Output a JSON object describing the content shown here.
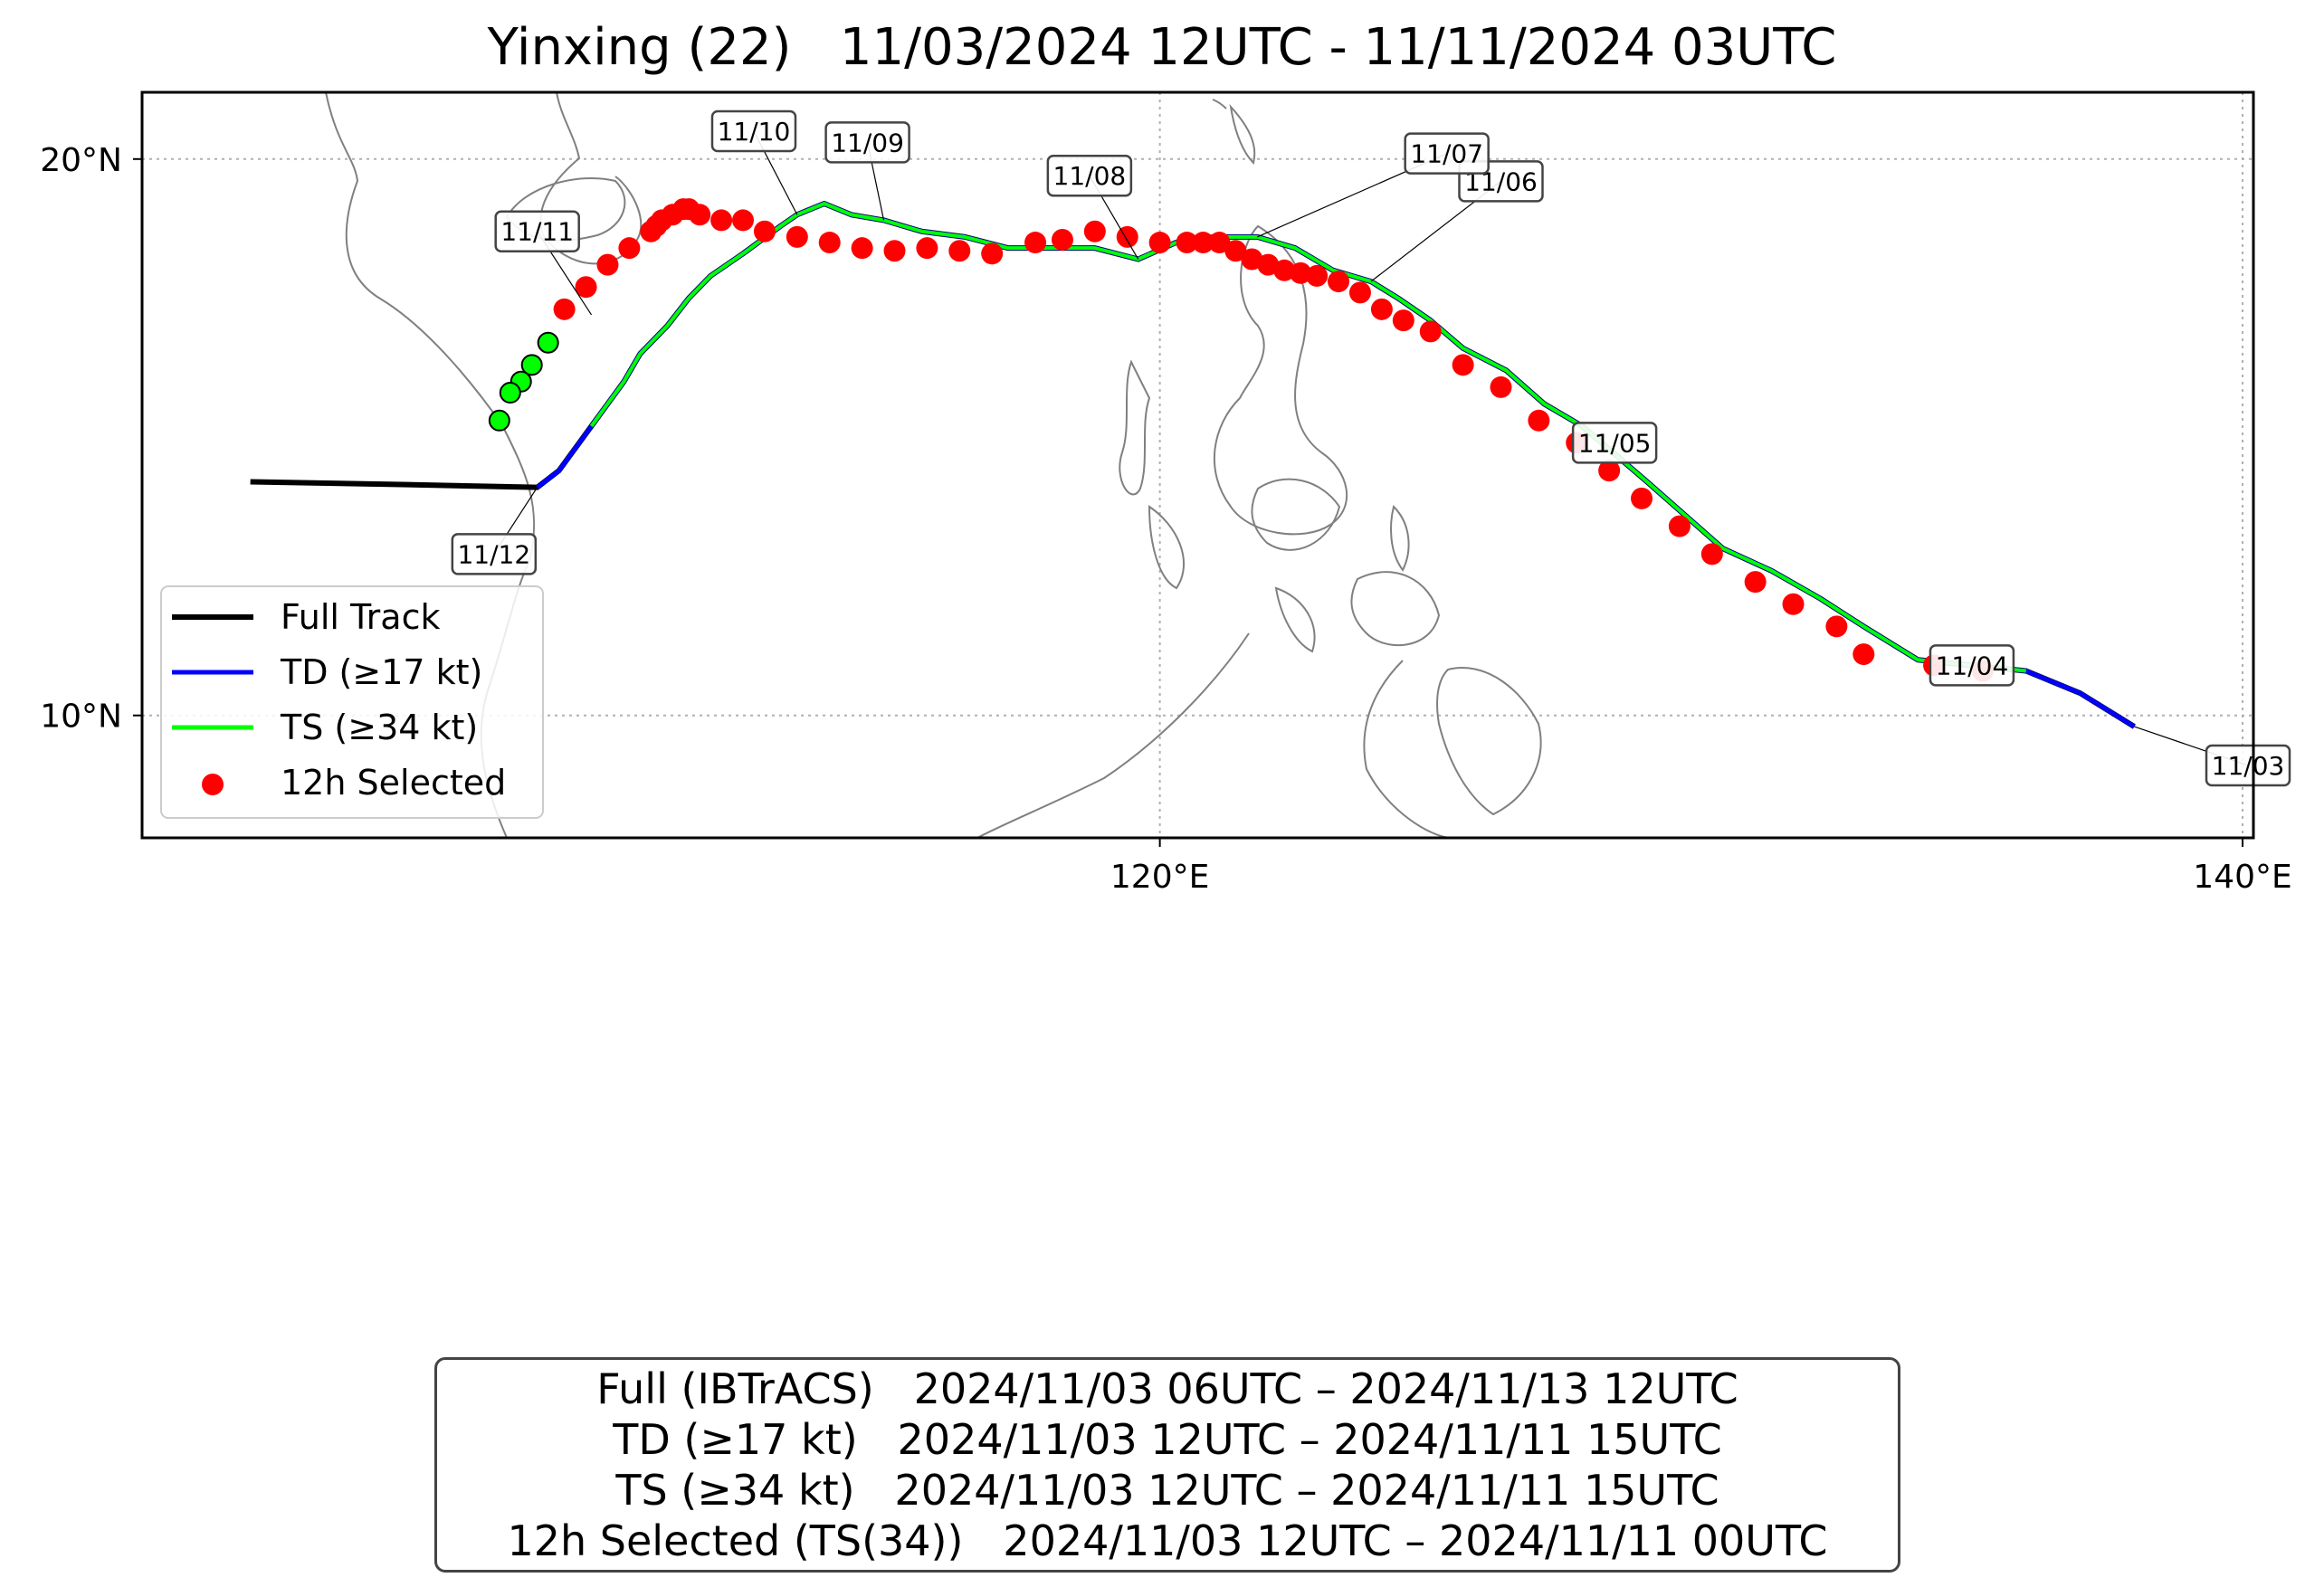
{
  "title": "Yinxing (22)   11/03/2024 12UTC - 11/11/2024 03UTC",
  "colors": {
    "full": "#000000",
    "td": "#0000ff",
    "ts": "#00ff00",
    "selected": "#ff0000",
    "coast": "#808080",
    "grid": "#b0b0b0"
  },
  "chart_data": {
    "type": "map",
    "lon_range": [
      101.2,
      140.2
    ],
    "lat_range": [
      7.8,
      21.2
    ],
    "x_ticks": [
      {
        "value": 120,
        "label": "120°E"
      },
      {
        "value": 140,
        "label": "140°E"
      }
    ],
    "y_ticks": [
      {
        "value": 10,
        "label": "10°N"
      },
      {
        "value": 20,
        "label": "20°N"
      }
    ],
    "grid": true,
    "legend_position": "lower-left",
    "legend": [
      {
        "key": "full",
        "label": "Full Track"
      },
      {
        "key": "td",
        "label": "TD (≥17 kt)"
      },
      {
        "key": "ts",
        "label": "TS (≥34 kt)"
      },
      {
        "key": "selected",
        "label": "12h Selected"
      }
    ],
    "full_track": [
      [
        138.0,
        9.8
      ],
      [
        137.0,
        10.4
      ],
      [
        136.0,
        10.8
      ],
      [
        135.0,
        10.9
      ],
      [
        134.0,
        11.0
      ],
      [
        133.0,
        11.6
      ],
      [
        132.2,
        12.1
      ],
      [
        131.3,
        12.6
      ],
      [
        130.4,
        13.0
      ],
      [
        129.7,
        13.6
      ],
      [
        129.0,
        14.2
      ],
      [
        128.4,
        14.7
      ],
      [
        127.8,
        15.2
      ],
      [
        127.1,
        15.6
      ],
      [
        126.4,
        16.2
      ],
      [
        125.6,
        16.6
      ],
      [
        125.0,
        17.1
      ],
      [
        124.4,
        17.5
      ],
      [
        123.9,
        17.8
      ],
      [
        123.2,
        18.0
      ],
      [
        122.5,
        18.4
      ],
      [
        121.8,
        18.6
      ],
      [
        121.0,
        18.6
      ],
      [
        120.3,
        18.5
      ],
      [
        119.6,
        18.2
      ],
      [
        118.8,
        18.4
      ],
      [
        118.0,
        18.4
      ],
      [
        117.2,
        18.4
      ],
      [
        116.4,
        18.6
      ],
      [
        115.6,
        18.7
      ],
      [
        114.9,
        18.9
      ],
      [
        114.3,
        19.0
      ],
      [
        113.8,
        19.2
      ],
      [
        113.3,
        19.0
      ],
      [
        113.0,
        18.8
      ],
      [
        112.3,
        18.3
      ],
      [
        111.7,
        17.9
      ],
      [
        111.3,
        17.5
      ],
      [
        110.9,
        17.0
      ],
      [
        110.4,
        16.5
      ],
      [
        110.1,
        16.0
      ],
      [
        109.8,
        15.6
      ],
      [
        109.5,
        15.2
      ],
      [
        109.2,
        14.8
      ],
      [
        108.9,
        14.4
      ],
      [
        108.5,
        14.1
      ],
      [
        106.0,
        14.15
      ],
      [
        103.2,
        14.2
      ]
    ],
    "td_track": [
      [
        138.0,
        9.8
      ],
      [
        137.0,
        10.4
      ],
      [
        136.0,
        10.8
      ],
      [
        135.0,
        10.9
      ],
      [
        134.0,
        11.0
      ],
      [
        133.0,
        11.6
      ],
      [
        132.2,
        12.1
      ],
      [
        131.3,
        12.6
      ],
      [
        130.4,
        13.0
      ],
      [
        129.7,
        13.6
      ],
      [
        129.0,
        14.2
      ],
      [
        128.4,
        14.7
      ],
      [
        127.8,
        15.2
      ],
      [
        127.1,
        15.6
      ],
      [
        126.4,
        16.2
      ],
      [
        125.6,
        16.6
      ],
      [
        125.0,
        17.1
      ],
      [
        124.4,
        17.5
      ],
      [
        123.9,
        17.8
      ],
      [
        123.2,
        18.0
      ],
      [
        122.5,
        18.4
      ],
      [
        121.8,
        18.6
      ],
      [
        121.0,
        18.6
      ],
      [
        120.3,
        18.5
      ],
      [
        119.6,
        18.2
      ],
      [
        118.8,
        18.4
      ],
      [
        118.0,
        18.4
      ],
      [
        117.2,
        18.4
      ],
      [
        116.4,
        18.6
      ],
      [
        115.6,
        18.7
      ],
      [
        114.9,
        18.9
      ],
      [
        114.3,
        19.0
      ],
      [
        113.8,
        19.2
      ],
      [
        113.3,
        19.0
      ],
      [
        113.0,
        18.8
      ],
      [
        112.3,
        18.3
      ],
      [
        111.7,
        17.9
      ],
      [
        111.3,
        17.5
      ],
      [
        110.9,
        17.0
      ],
      [
        110.4,
        16.5
      ],
      [
        110.1,
        16.0
      ],
      [
        109.8,
        15.6
      ],
      [
        109.5,
        15.2
      ],
      [
        109.2,
        14.8
      ],
      [
        108.9,
        14.4
      ],
      [
        108.5,
        14.1
      ]
    ],
    "ts_track": [
      [
        136.0,
        10.8
      ],
      [
        135.0,
        10.9
      ],
      [
        134.0,
        11.0
      ],
      [
        133.0,
        11.6
      ],
      [
        132.2,
        12.1
      ],
      [
        131.3,
        12.6
      ],
      [
        130.4,
        13.0
      ],
      [
        129.7,
        13.6
      ],
      [
        129.0,
        14.2
      ],
      [
        128.4,
        14.7
      ],
      [
        127.8,
        15.2
      ],
      [
        127.1,
        15.6
      ],
      [
        126.4,
        16.2
      ],
      [
        125.6,
        16.6
      ],
      [
        125.0,
        17.1
      ],
      [
        124.4,
        17.5
      ],
      [
        123.9,
        17.8
      ],
      [
        123.2,
        18.0
      ],
      [
        122.5,
        18.4
      ],
      [
        121.8,
        18.6
      ],
      [
        121.0,
        18.6
      ],
      [
        120.3,
        18.5
      ],
      [
        119.6,
        18.2
      ],
      [
        118.8,
        18.4
      ],
      [
        118.0,
        18.4
      ],
      [
        117.2,
        18.4
      ],
      [
        116.4,
        18.6
      ],
      [
        115.6,
        18.7
      ],
      [
        114.9,
        18.9
      ],
      [
        114.3,
        19.0
      ],
      [
        113.8,
        19.2
      ],
      [
        113.3,
        19.0
      ],
      [
        113.0,
        18.8
      ],
      [
        112.3,
        18.3
      ],
      [
        111.7,
        17.9
      ],
      [
        111.3,
        17.5
      ],
      [
        110.9,
        17.0
      ],
      [
        110.4,
        16.5
      ],
      [
        110.1,
        16.0
      ],
      [
        109.8,
        15.6
      ],
      [
        109.5,
        15.2
      ]
    ],
    "selected_points": [
      [
        135.2,
        10.8
      ],
      [
        134.3,
        10.9
      ],
      [
        133.0,
        11.1
      ],
      [
        132.5,
        11.6
      ],
      [
        131.7,
        12.0
      ],
      [
        131.0,
        12.4
      ],
      [
        130.2,
        12.9
      ],
      [
        129.6,
        13.4
      ],
      [
        128.9,
        13.9
      ],
      [
        128.3,
        14.4
      ],
      [
        127.7,
        14.9
      ],
      [
        127.0,
        15.3
      ],
      [
        126.3,
        15.9
      ],
      [
        125.6,
        16.3
      ],
      [
        125.0,
        16.9
      ],
      [
        124.5,
        17.1
      ],
      [
        124.1,
        17.3
      ],
      [
        123.7,
        17.6
      ],
      [
        123.3,
        17.8
      ],
      [
        122.9,
        17.9
      ],
      [
        122.6,
        17.95
      ],
      [
        122.3,
        18.0
      ],
      [
        122.0,
        18.1
      ],
      [
        121.7,
        18.2
      ],
      [
        121.4,
        18.35
      ],
      [
        121.1,
        18.5
      ],
      [
        120.8,
        18.5
      ],
      [
        120.5,
        18.5
      ],
      [
        120.0,
        18.5
      ],
      [
        119.4,
        18.6
      ],
      [
        118.8,
        18.7
      ],
      [
        118.2,
        18.55
      ],
      [
        117.7,
        18.5
      ],
      [
        116.9,
        18.3
      ],
      [
        116.3,
        18.35
      ],
      [
        115.7,
        18.4
      ],
      [
        115.1,
        18.35
      ],
      [
        114.5,
        18.4
      ],
      [
        113.9,
        18.5
      ],
      [
        113.3,
        18.6
      ],
      [
        112.7,
        18.7
      ],
      [
        112.3,
        18.9
      ],
      [
        111.9,
        18.9
      ],
      [
        111.5,
        19.0
      ],
      [
        111.3,
        19.1
      ],
      [
        111.2,
        19.1
      ],
      [
        111.0,
        19.0
      ],
      [
        110.8,
        18.9
      ],
      [
        110.7,
        18.8
      ],
      [
        110.6,
        18.7
      ],
      [
        110.2,
        18.4
      ],
      [
        109.8,
        18.1
      ],
      [
        109.4,
        17.7
      ],
      [
        109.0,
        17.3
      ]
    ],
    "ts_points": [
      [
        108.7,
        16.7
      ],
      [
        108.4,
        16.3
      ],
      [
        108.2,
        16.0
      ],
      [
        108.0,
        15.8
      ],
      [
        107.8,
        15.3
      ]
    ],
    "date_labels": [
      {
        "text": "11/03",
        "lon": 138.0,
        "lat": 9.8,
        "lx": 140.1,
        "ly": 9.1
      },
      {
        "text": "11/04",
        "lon": 135.0,
        "lat": 10.9,
        "lx": 135.0,
        "ly": 10.9
      },
      {
        "text": "11/05",
        "lon": 128.4,
        "lat": 14.7,
        "lx": 128.4,
        "ly": 14.9
      },
      {
        "text": "11/06",
        "lon": 123.9,
        "lat": 17.8,
        "lx": 126.3,
        "ly": 19.6
      },
      {
        "text": "11/07",
        "lon": 121.8,
        "lat": 18.6,
        "lx": 125.3,
        "ly": 20.1
      },
      {
        "text": "11/08",
        "lon": 119.6,
        "lat": 18.2,
        "lx": 118.7,
        "ly": 19.7
      },
      {
        "text": "11/09",
        "lon": 114.9,
        "lat": 18.9,
        "lx": 114.6,
        "ly": 20.3
      },
      {
        "text": "11/10",
        "lon": 113.3,
        "lat": 19.0,
        "lx": 112.5,
        "ly": 20.5
      },
      {
        "text": "11/11",
        "lon": 109.5,
        "lat": 17.2,
        "lx": 108.5,
        "ly": 18.7
      },
      {
        "text": "11/12",
        "lon": 108.5,
        "lat": 14.1,
        "lx": 107.7,
        "ly": 12.9
      }
    ]
  },
  "summary": {
    "lines": [
      "Full (IBTrACS)   2024/11/03 06UTC – 2024/11/13 12UTC",
      "TD (≥17 kt)   2024/11/03 12UTC – 2024/11/11 15UTC",
      "TS (≥34 kt)   2024/11/03 12UTC – 2024/11/11 15UTC",
      "12h Selected (TS(34))   2024/11/03 12UTC – 2024/11/11 00UTC"
    ]
  }
}
